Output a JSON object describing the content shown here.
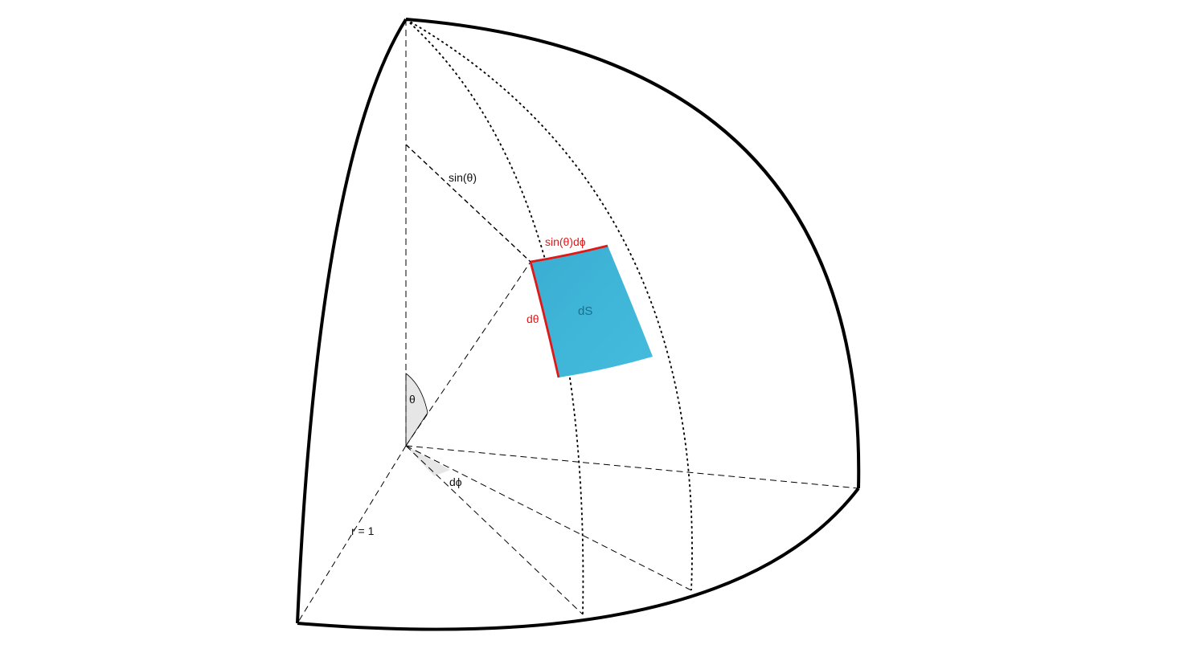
{
  "labels": {
    "sin_theta": "sin(θ)",
    "sin_theta_dphi": "sin(θ)dϕ",
    "d_theta": "dθ",
    "ds": "dS",
    "theta": "θ",
    "d_phi": "dϕ",
    "radius": "r = 1"
  },
  "colors": {
    "outline": "#000000",
    "patch_fill": "#3fb6d8",
    "highlight_edge": "#e01818",
    "angle_wedge": "#e6e6e6"
  }
}
